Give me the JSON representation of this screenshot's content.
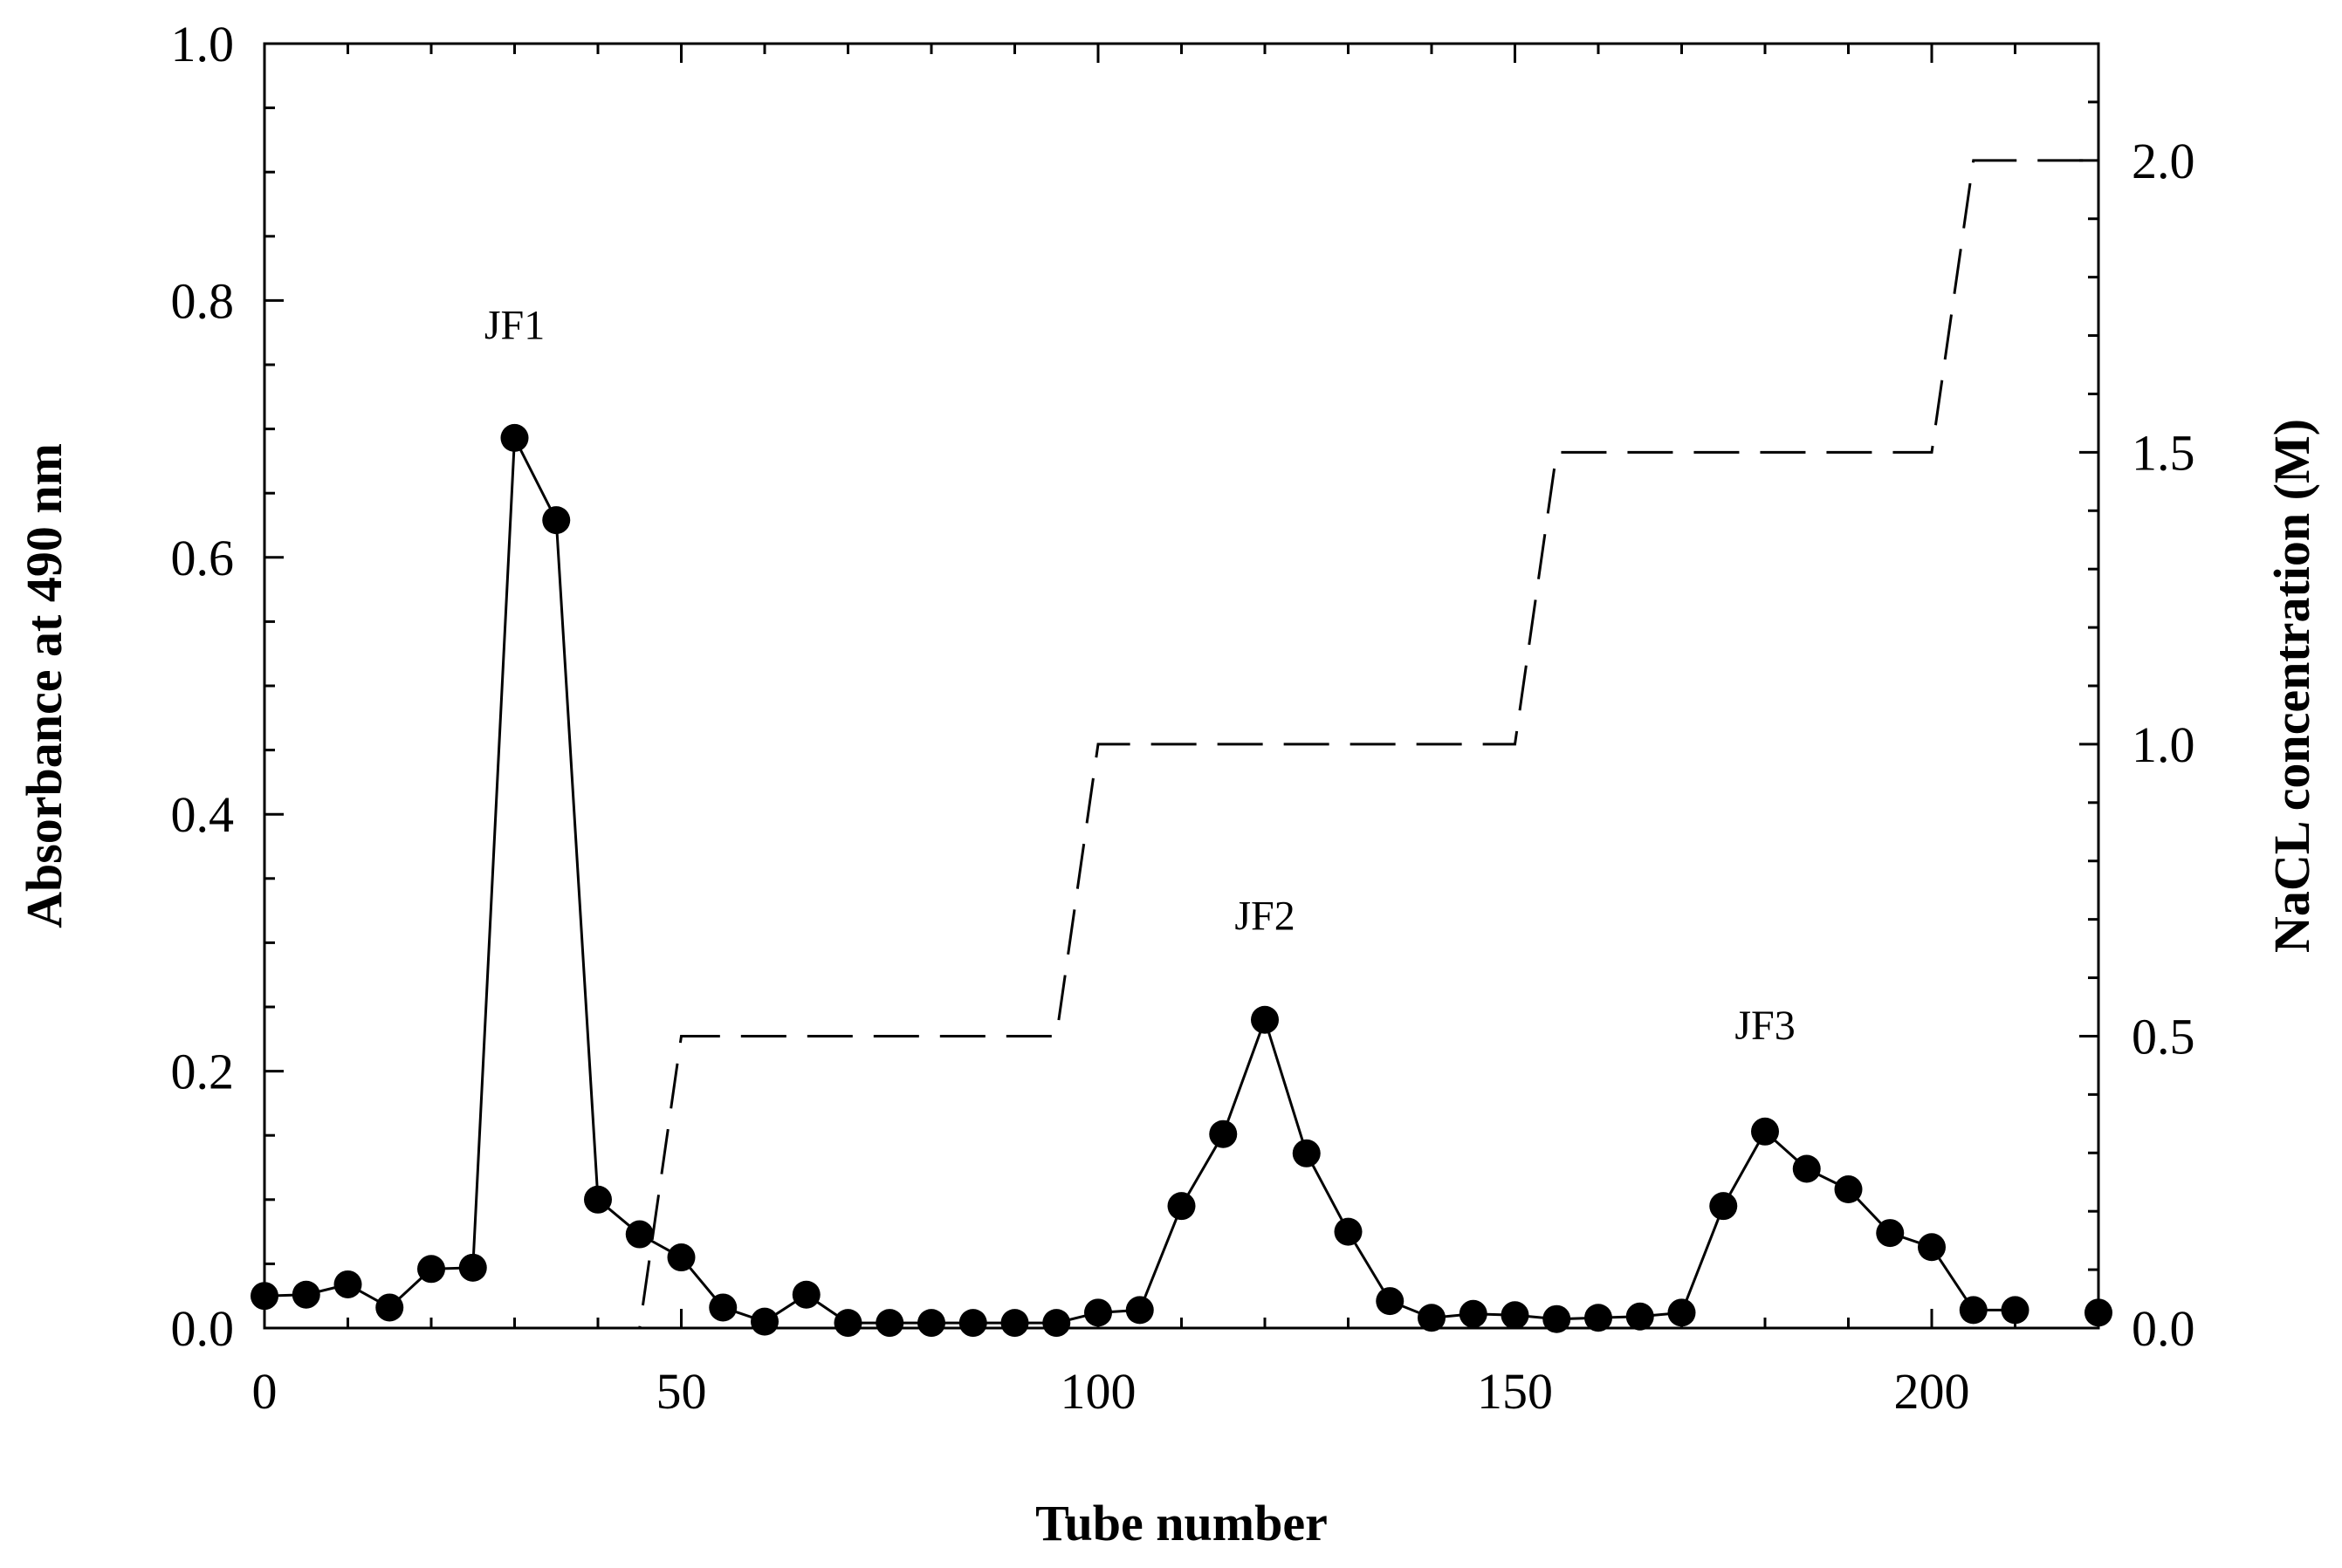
{
  "chart_data": {
    "type": "line",
    "xlabel": "Tube number",
    "ylabel": "Absorbance at 490 nm",
    "y2label": "NaCL concentration (M)",
    "xlim": [
      0,
      220
    ],
    "ylim": [
      0,
      1.0
    ],
    "y2lim": [
      0,
      2.2
    ],
    "xticks": [
      "0",
      "50",
      "100",
      "150",
      "200"
    ],
    "yticks": [
      "0.0",
      "0.2",
      "0.4",
      "0.6",
      "0.8",
      "1.0"
    ],
    "y2ticks": [
      "0.0",
      "0.5",
      "1.0",
      "1.5",
      "2.0"
    ],
    "grid": false,
    "series": [
      {
        "style": "solid line with filled circle markers",
        "axis": "left",
        "x": [
          0,
          5,
          10,
          15,
          20,
          25,
          30,
          35,
          40,
          45,
          50,
          55,
          60,
          65,
          70,
          75,
          80,
          85,
          90,
          95,
          100,
          105,
          110,
          115,
          120,
          125,
          130,
          135,
          140,
          145,
          150,
          155,
          160,
          165,
          170,
          175,
          180,
          185,
          190,
          195,
          200,
          205,
          210
        ],
        "y": [
          0.025,
          0.026,
          0.034,
          0.016,
          0.046,
          0.047,
          0.693,
          0.629,
          0.1,
          0.073,
          0.055,
          0.016,
          0.005,
          0.026,
          0.004,
          0.004,
          0.004,
          0.004,
          0.004,
          0.004,
          0.012,
          0.014,
          0.095,
          0.151,
          0.24,
          0.136,
          0.075,
          0.021,
          0.008,
          0.011,
          0.01,
          0.007,
          0.008,
          0.009,
          0.012,
          0.095,
          0.153,
          0.124,
          0.108,
          0.074,
          0.063,
          0.014,
          0.014
        ]
      },
      {
        "style": "solid line with filled circle markers (isolated point)",
        "axis": "left",
        "x": [
          220
        ],
        "y": [
          0.012
        ]
      },
      {
        "style": "dashed line",
        "axis": "right",
        "x": [
          0,
          45,
          50,
          95,
          100,
          150,
          155,
          200,
          205,
          220
        ],
        "y": [
          0,
          0,
          0.5,
          0.5,
          1.0,
          1.0,
          1.5,
          1.5,
          2.0,
          2.0
        ]
      }
    ],
    "annotations": [
      {
        "text": "JF1",
        "x": 30,
        "y": 0.77
      },
      {
        "text": "JF2",
        "x": 120,
        "y": 0.31
      },
      {
        "text": "JF3",
        "x": 180,
        "y": 0.225
      }
    ]
  }
}
